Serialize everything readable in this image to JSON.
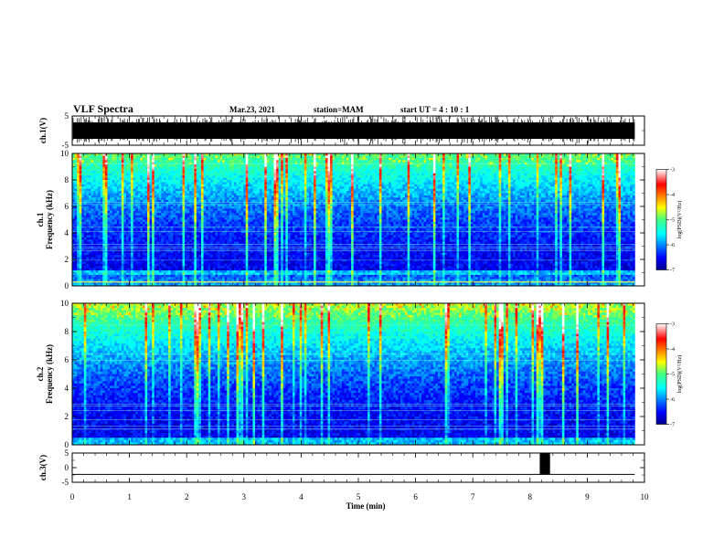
{
  "header": {
    "title": "VLF Spectra",
    "date": "Mar.23, 2021",
    "station": "station=MAM",
    "start": "start UT =  4 : 10 : 1"
  },
  "chart_data": [
    {
      "type": "line",
      "name": "ch1-waveform",
      "ylabel": "ch.1(V)",
      "ylim": [
        -5,
        5
      ],
      "yticks": [
        "5",
        "-5"
      ],
      "xlim": [
        0,
        10
      ],
      "data_extent_min": [
        0,
        9.83
      ],
      "description_values": "dense impulsive signal spanning full range"
    },
    {
      "type": "heatmap",
      "name": "ch1-spectrogram",
      "ylabel_top": "ch.1",
      "ylabel": "Frequency (kHz)",
      "ylim": [
        0,
        10
      ],
      "yticks": [
        "0",
        "2",
        "4",
        "6",
        "8",
        "10"
      ],
      "xlim": [
        0,
        10
      ],
      "colorbar": {
        "range": [
          -7,
          -3
        ],
        "ticks": [
          "-3",
          "-4",
          "-5",
          "-6",
          "-7"
        ],
        "label": "log(PSD)(V²/Hz)"
      }
    },
    {
      "type": "heatmap",
      "name": "ch2-spectrogram",
      "ylabel_top": "ch.2",
      "ylabel": "Frequency (kHz)",
      "ylim": [
        0,
        10
      ],
      "yticks": [
        "0",
        "2",
        "4",
        "6",
        "8",
        "10"
      ],
      "xlim": [
        0,
        10
      ],
      "colorbar": {
        "range": [
          -7,
          -3
        ],
        "ticks": [
          "-3",
          "-4",
          "-5",
          "-6",
          "-7"
        ],
        "label": "log(PSD)(V²/Hz)"
      }
    },
    {
      "type": "line",
      "name": "ch3-waveform",
      "ylabel": "ch.3(V)",
      "ylim": [
        -5,
        5
      ],
      "yticks": [
        "5",
        "0",
        "-5"
      ],
      "xlim": [
        0,
        10
      ],
      "baseline_value": -2.3,
      "pulse": {
        "x_start": 8.17,
        "x_end": 8.35,
        "y_low": -2.3,
        "y_high": 5
      }
    }
  ],
  "xaxis": {
    "label": "Time (min)",
    "ticks": [
      "0",
      "1",
      "2",
      "3",
      "4",
      "5",
      "6",
      "7",
      "8",
      "9",
      "10"
    ],
    "data_end": 9.83
  }
}
